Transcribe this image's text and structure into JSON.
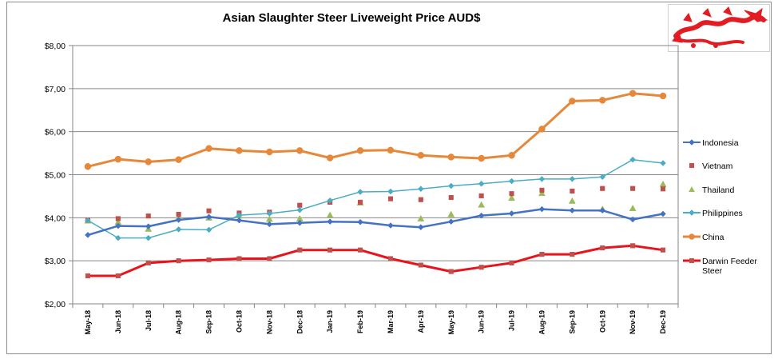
{
  "chart_data": {
    "type": "line",
    "title": "Asian Slaughter Steer Liveweight Price AUD$",
    "xlabel": "",
    "ylabel": "",
    "categories": [
      "May-18",
      "Jun-18",
      "Jul-18",
      "Aug-18",
      "Sep-18",
      "Oct-18",
      "Nov-18",
      "Dec-18",
      "Jan-19",
      "Feb-19",
      "Mar-19",
      "Apr-19",
      "May-19",
      "Jun-19",
      "Jul-19",
      "Aug-19",
      "Sep-19",
      "Oct-19",
      "Nov-19",
      "Dec-19"
    ],
    "y_tick_labels": [
      "$2,00",
      "$3,00",
      "$4,00",
      "$5,00",
      "$6,00",
      "$7,00",
      "$8,00"
    ],
    "ylim": [
      2,
      8
    ],
    "grid": true,
    "legend_position": "right",
    "series": [
      {
        "name": "Indonesia",
        "color": "#4472c4",
        "marker": "diamond",
        "line": true,
        "values": [
          3.6,
          3.81,
          3.8,
          3.95,
          4.02,
          3.94,
          3.85,
          3.88,
          3.91,
          3.9,
          3.82,
          3.78,
          3.91,
          4.05,
          4.1,
          4.2,
          4.17,
          4.17,
          3.96,
          4.09
        ]
      },
      {
        "name": "Vietnam",
        "color": "#c0504d",
        "marker": "square",
        "line": false,
        "values": [
          3.95,
          3.98,
          4.04,
          4.08,
          4.16,
          4.11,
          4.13,
          4.29,
          4.36,
          4.36,
          4.44,
          4.42,
          4.47,
          4.51,
          4.56,
          4.64,
          4.62,
          4.68,
          4.68,
          4.67
        ]
      },
      {
        "name": "Thailand",
        "color": "#9bbb59",
        "marker": "triangle",
        "line": false,
        "values": [
          3.93,
          3.9,
          3.74,
          4.0,
          4.0,
          4.05,
          3.97,
          3.98,
          4.06,
          4.35,
          null,
          3.98,
          4.08,
          4.3,
          4.46,
          4.57,
          4.39,
          4.2,
          4.22,
          4.78
        ]
      },
      {
        "name": "Philippines",
        "color": "#4bacc6",
        "marker": "diamond",
        "line": true,
        "values": [
          3.94,
          3.53,
          3.53,
          3.73,
          3.72,
          4.06,
          4.1,
          4.18,
          4.4,
          4.6,
          4.61,
          4.67,
          4.74,
          4.79,
          4.85,
          4.9,
          4.9,
          4.95,
          5.35,
          5.27
        ]
      },
      {
        "name": "China",
        "color": "#e5883a",
        "marker": "circle",
        "line": true,
        "values": [
          5.19,
          5.36,
          5.3,
          5.35,
          5.61,
          5.56,
          5.53,
          5.56,
          5.39,
          5.56,
          5.57,
          5.45,
          5.41,
          5.38,
          5.45,
          6.06,
          6.71,
          6.73,
          6.89,
          6.83
        ]
      },
      {
        "name": "Darwin Feeder Steer",
        "color": "#e8141c",
        "marker": "square",
        "line": true,
        "values": [
          2.65,
          2.65,
          2.95,
          3.0,
          3.02,
          3.05,
          3.05,
          3.25,
          3.25,
          3.25,
          3.05,
          2.9,
          2.75,
          2.85,
          2.95,
          3.15,
          3.15,
          3.3,
          3.35,
          3.25
        ]
      }
    ]
  },
  "logo": {
    "icon": "red-dragon-icon",
    "color": "#e31b23"
  }
}
